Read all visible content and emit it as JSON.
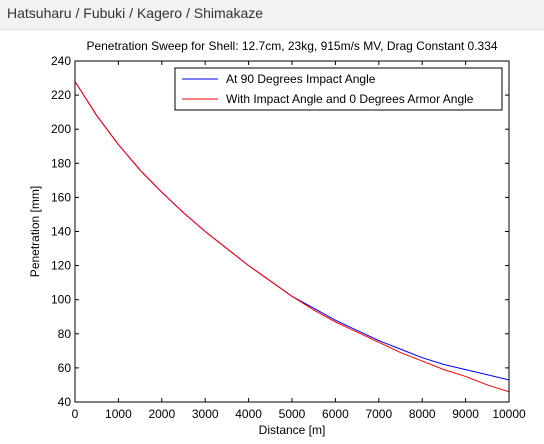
{
  "page": {
    "header_title": "Hatsuharu / Fubuki / Kagero / Shimakaze"
  },
  "chart_data": {
    "type": "line",
    "title": "Penetration Sweep for Shell: 12.7cm, 23kg, 915m/s MV, Drag Constant 0.334",
    "xlabel": "Distance [m]",
    "ylabel": "Penetration [mm]",
    "xlim": [
      0,
      10000
    ],
    "ylim": [
      40,
      240
    ],
    "xticks": [
      0,
      1000,
      2000,
      3000,
      4000,
      5000,
      6000,
      7000,
      8000,
      9000,
      10000
    ],
    "yticks": [
      40,
      60,
      80,
      100,
      120,
      140,
      160,
      180,
      200,
      220,
      240
    ],
    "grid": false,
    "legend_position": "top-right",
    "x": [
      0,
      500,
      1000,
      1500,
      2000,
      2500,
      3000,
      3500,
      4000,
      4500,
      5000,
      5500,
      6000,
      6500,
      7000,
      7500,
      8000,
      8500,
      9000,
      9500,
      10000
    ],
    "series": [
      {
        "name": "At 90 Degrees Impact Angle",
        "color": "#0000ff",
        "values": [
          228,
          208,
          191,
          176,
          163,
          151,
          140,
          130,
          120,
          111,
          102,
          95,
          88,
          82,
          76,
          71,
          66,
          62,
          59,
          56,
          53
        ]
      },
      {
        "name": "With Impact Angle and 0 Degrees Armor Angle",
        "color": "#ff0000",
        "values": [
          228,
          208,
          191,
          176,
          163,
          151,
          140,
          130,
          120,
          111,
          102,
          94,
          87,
          81,
          75,
          69,
          64,
          59,
          55,
          50,
          46
        ]
      }
    ]
  }
}
